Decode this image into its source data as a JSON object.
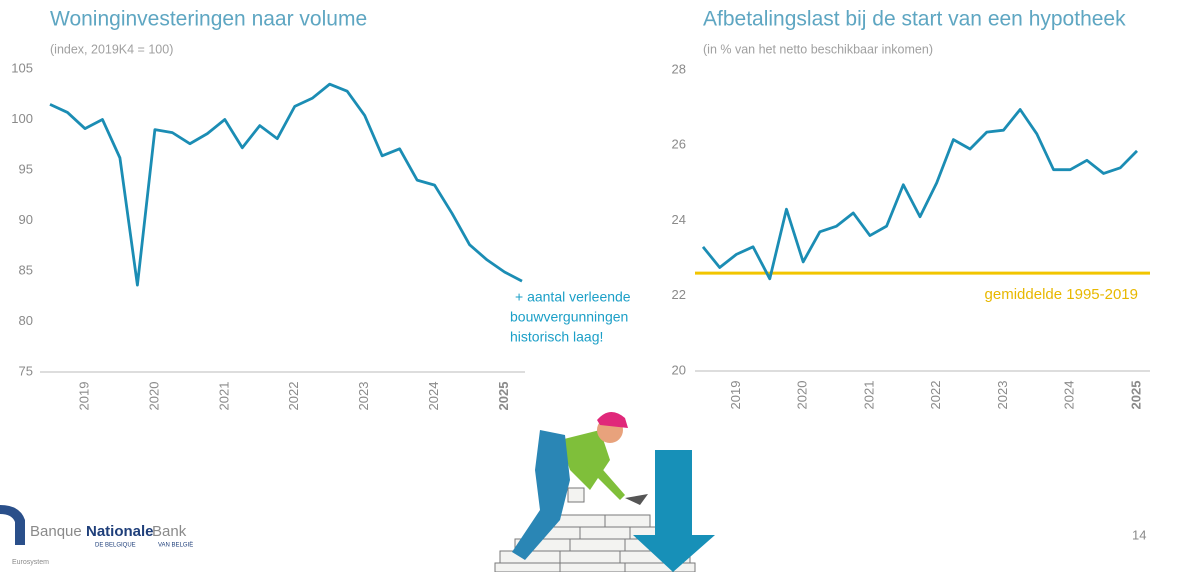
{
  "chart_data": [
    {
      "type": "line",
      "title": "Woninginvesteringen naar volume",
      "subtitle": "(index, 2019K4 = 100)",
      "categories": [
        null,
        null,
        "2019",
        null,
        null,
        null,
        "2020",
        null,
        null,
        null,
        "2021",
        null,
        null,
        null,
        "2022",
        null,
        null,
        null,
        "2023",
        null,
        null,
        null,
        "2024",
        null,
        null,
        null,
        "2025",
        null
      ],
      "series": [
        {
          "color": "#1b8db4",
          "values": [
            101.5,
            100.7,
            99.1,
            100,
            96.2,
            83.6,
            99,
            98.7,
            97.6,
            98.6,
            100,
            97.2,
            99.4,
            98.1,
            101.3,
            102.1,
            103.5,
            102.8,
            100.4,
            96.4,
            97.1,
            94,
            93.5,
            90.7,
            87.6,
            86.1,
            84.9,
            84
          ]
        }
      ],
      "ylim": [
        75,
        105
      ],
      "yticks": [
        75,
        80,
        85,
        90,
        95,
        100,
        105
      ],
      "highlight_last_label": true
    },
    {
      "type": "line",
      "title": "Afbetalingslast bij de start van een hypotheek",
      "subtitle": "(in % van het netto beschikbaar inkomen)",
      "categories": [
        null,
        null,
        "2019",
        null,
        null,
        null,
        "2020",
        null,
        null,
        null,
        "2021",
        null,
        null,
        null,
        "2022",
        null,
        null,
        null,
        "2023",
        null,
        null,
        null,
        "2024",
        null,
        null,
        null,
        "2025"
      ],
      "series": [
        {
          "color": "#1b8db4",
          "values": [
            23.3,
            22.75,
            23.1,
            23.3,
            22.45,
            24.3,
            22.9,
            23.7,
            23.85,
            24.2,
            23.6,
            23.85,
            24.95,
            24.1,
            25,
            26.15,
            25.9,
            26.35,
            26.4,
            26.95,
            26.3,
            25.35,
            25.35,
            25.6,
            25.25,
            25.4,
            25.85
          ]
        }
      ],
      "reference_line": {
        "value": 22.6,
        "label": "gemiddelde 1995-2019",
        "color": "#f2c500"
      },
      "ylim": [
        20,
        28
      ],
      "yticks": [
        20,
        22,
        24,
        26,
        28
      ],
      "highlight_last_label": true
    }
  ],
  "annotation": {
    "lines": [
      "+ aantal verleende",
      "bouwvergunningen",
      "historisch laag!"
    ]
  },
  "logo": {
    "banque": "Banque",
    "nationale": "Nationale",
    "bank": "Bank",
    "fr": "DE BELGIQUE",
    "nl": "VAN BELGIË",
    "eurosystem": "Eurosystem"
  },
  "page_number": "14"
}
